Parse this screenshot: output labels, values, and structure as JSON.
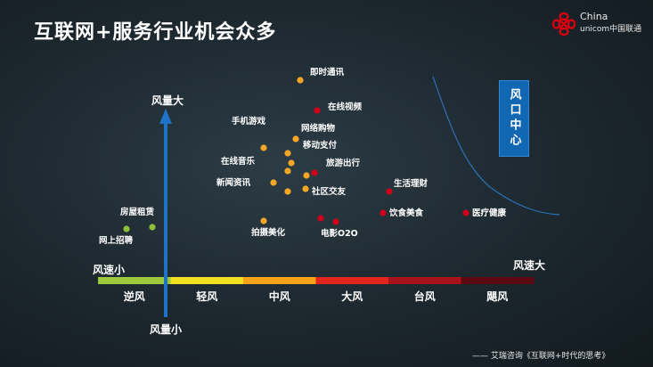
{
  "title": "互联网+服务行业机会众多",
  "brand": {
    "line1": "China",
    "line2": "unicom中国联通",
    "color": "#d7000f"
  },
  "source": "—— 艾瑞咨询《互联网+时代的思考》",
  "chart_data": {
    "type": "scatter",
    "y_axis_top_label": "风量大",
    "y_axis_bottom_label": "风量小",
    "x_axis_left_label": "风速小",
    "x_axis_right_label": "风速大",
    "wind_bands": [
      {
        "label": "逆风",
        "color": "#9cc83c"
      },
      {
        "label": "轻风",
        "color": "#f2e020"
      },
      {
        "label": "中风",
        "color": "#f7a21b"
      },
      {
        "label": "大风",
        "color": "#e2261d"
      },
      {
        "label": "台风",
        "color": "#a8131b"
      },
      {
        "label": "飓风",
        "color": "#5a0a10"
      }
    ],
    "callout": "风口中心",
    "point_colors": {
      "green": "#8ebf3c",
      "orange": "#f5a623",
      "red": "#d0021b"
    },
    "points": [
      {
        "label": "即时通讯",
        "color": "orange"
      },
      {
        "label": "在线视频",
        "color": "red"
      },
      {
        "label": "手机游戏",
        "color": "orange"
      },
      {
        "label": "网络购物",
        "color": "orange"
      },
      {
        "label": "移动支付",
        "color": "orange"
      },
      {
        "label": "在线音乐",
        "color": "orange"
      },
      {
        "label": "旅游出行",
        "color": "red"
      },
      {
        "label": "新闻资讯",
        "color": "orange"
      },
      {
        "label": "社区交友",
        "color": "orange"
      },
      {
        "label": "生活理财",
        "color": "red"
      },
      {
        "label": "饮食美食",
        "color": "red"
      },
      {
        "label": "医疗健康",
        "color": "red"
      },
      {
        "label": "拍摄美化",
        "color": "orange"
      },
      {
        "label": "电影O2O",
        "color": "red"
      },
      {
        "label": "房屋租赁",
        "color": "green"
      },
      {
        "label": "网上招聘",
        "color": "green"
      }
    ]
  }
}
